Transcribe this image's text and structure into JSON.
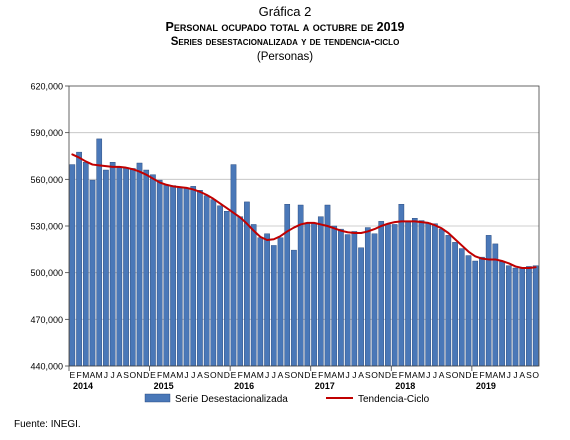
{
  "figure_label": "Gráfica 2",
  "title": "Personal ocupado total a octubre de 2019",
  "subtitle": "Series desestacionalizada y de tendencia-ciclo",
  "units": "(Personas)",
  "source": "Fuente: INEGI.",
  "colors": {
    "bar_fill": "#4a78b8",
    "bar_stroke": "#1f3f73",
    "trend_line": "#c00000",
    "plot_border": "#404040",
    "grid": "#bfbfbf"
  },
  "chart_data": {
    "type": "bar",
    "title": "Personal ocupado total a octubre de 2019",
    "subtitle": "Series desestacionalizada y de tendencia-ciclo",
    "ylabel": "(Personas)",
    "ylim": [
      440000,
      620000
    ],
    "yticks": [
      440000,
      470000,
      500000,
      530000,
      560000,
      590000,
      620000
    ],
    "ytick_labels": [
      "440,000",
      "470,000",
      "500,000",
      "530,000",
      "560,000",
      "590,000",
      "620,000"
    ],
    "grid": true,
    "legend_position": "bottom",
    "month_letters": [
      "E",
      "F",
      "M",
      "A",
      "M",
      "J",
      "J",
      "A",
      "S",
      "O",
      "N",
      "D",
      "E",
      "F",
      "M",
      "A",
      "M",
      "J",
      "J",
      "A",
      "S",
      "O",
      "N",
      "D",
      "E",
      "F",
      "M",
      "A",
      "M",
      "J",
      "J",
      "A",
      "S",
      "O",
      "N",
      "D",
      "E",
      "F",
      "M",
      "A",
      "M",
      "J",
      "J",
      "A",
      "S",
      "O",
      "N",
      "D",
      "E",
      "F",
      "M",
      "A",
      "M",
      "J",
      "J",
      "A",
      "S",
      "O",
      "N",
      "D",
      "E",
      "F",
      "M",
      "A",
      "M",
      "J",
      "J",
      "A",
      "S",
      "O"
    ],
    "year_labels": [
      {
        "index": 0,
        "label": "2014"
      },
      {
        "index": 12,
        "label": "2015"
      },
      {
        "index": 24,
        "label": "2016"
      },
      {
        "index": 36,
        "label": "2017"
      },
      {
        "index": 48,
        "label": "2018"
      },
      {
        "index": 60,
        "label": "2019"
      }
    ],
    "series": [
      {
        "name": "Serie Desestacionalizada",
        "type": "bar",
        "values": [
          569500,
          577500,
          571000,
          559500,
          586000,
          566000,
          571000,
          567500,
          567500,
          567000,
          570500,
          566000,
          563000,
          559500,
          556500,
          556000,
          554500,
          554500,
          555500,
          553000,
          549500,
          547000,
          543000,
          539500,
          569500,
          536000,
          545500,
          531000,
          522500,
          525000,
          517500,
          522500,
          544000,
          514500,
          543500,
          532000,
          531500,
          536000,
          543500,
          530000,
          528000,
          524500,
          526500,
          516000,
          529000,
          525000,
          533000,
          531000,
          531000,
          544000,
          532500,
          535000,
          533500,
          532000,
          531500,
          528000,
          524000,
          519500,
          515500,
          511000,
          507500,
          510000,
          524000,
          518500,
          507000,
          504500,
          503000,
          503000,
          504000,
          504500
        ]
      },
      {
        "name": "Tendencia-Ciclo",
        "type": "line",
        "values": [
          576000,
          574000,
          571500,
          569500,
          569000,
          568500,
          568000,
          568000,
          567500,
          566500,
          565000,
          563000,
          560500,
          558000,
          556500,
          555500,
          555000,
          554500,
          553500,
          552000,
          550000,
          547500,
          544500,
          541500,
          538500,
          535500,
          531500,
          527000,
          523000,
          521000,
          521500,
          523500,
          526500,
          529000,
          531000,
          532000,
          532000,
          531000,
          530000,
          528500,
          527000,
          526000,
          525500,
          525500,
          526500,
          528000,
          530000,
          531500,
          532500,
          533000,
          533000,
          533000,
          532500,
          532000,
          530500,
          528500,
          525500,
          521500,
          517500,
          513500,
          510500,
          509000,
          508500,
          508500,
          507500,
          506000,
          504000,
          503000,
          503000,
          503500
        ]
      }
    ]
  }
}
